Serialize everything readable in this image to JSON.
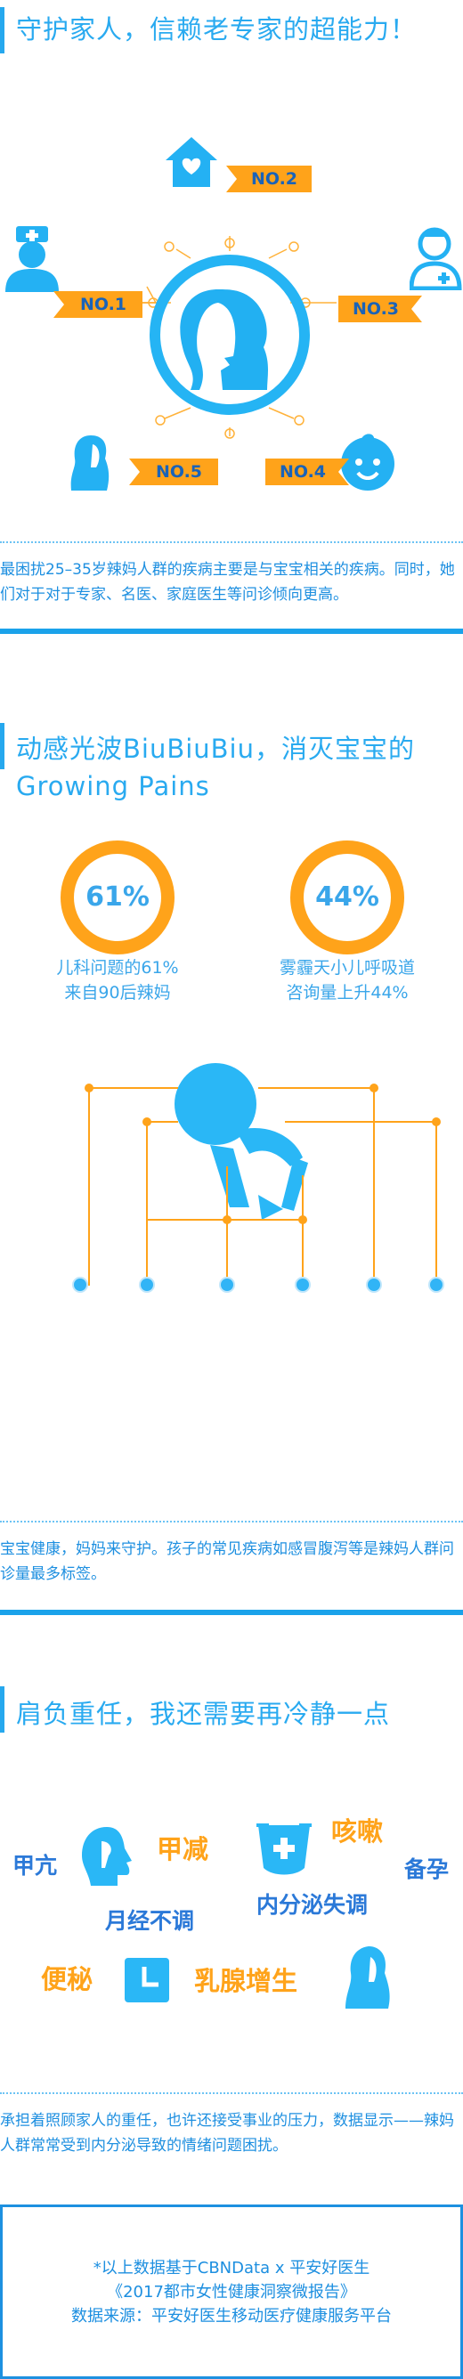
{
  "section1": {
    "heading": "守护家人，信赖老专家的超能力！",
    "tags": [
      "NO.1",
      "NO.2",
      "NO.3",
      "NO.4",
      "NO.5"
    ],
    "paragraph": "最困扰25–35岁辣妈人群的疾病主要是与宝宝相关的疾病。同时，她们对于对于专家、名医、家庭医生等问诊倾向更高。"
  },
  "section2": {
    "heading_line1": "动感光波BiuBiuBiu，消灭宝宝的",
    "heading_line2": "Growing Pains",
    "stats": [
      {
        "value": "61%",
        "line1": "儿科问题的61%",
        "line2": "来自90后辣妈"
      },
      {
        "value": "44%",
        "line1": "雾霾天小儿呼吸道",
        "line2": "咨询量上升44%"
      }
    ],
    "paragraph": "宝宝健康，妈妈来守护。孩子的常见疾病如感冒腹泻等是辣妈人群问诊量最多标签。"
  },
  "section3": {
    "heading": "肩负重任，我还需要再冷静一点",
    "symptoms": {
      "jiakang": "甲亢",
      "jiajian": "甲减",
      "kesou": "咳嗽",
      "beiyun": "备孕",
      "yuejing": "月经不调",
      "neifenmi": "内分泌失调",
      "bianmi": "便秘",
      "ruxian": "乳腺增生"
    },
    "paragraph": "承担着照顾家人的重任，也许还接受事业的压力，数据显示——辣妈人群常常受到内分泌导致的情绪问题困扰。"
  },
  "footer": {
    "line1": "*以上数据基于CBNData x 平安好医生",
    "line2": "《2017都市女性健康洞察微报告》",
    "line3": "数据来源：平安好医生移动医疗健康服务平台"
  },
  "colors": {
    "blue": "#29aaf0",
    "orange": "#ffa31a",
    "dark_blue": "#2b79d8"
  }
}
